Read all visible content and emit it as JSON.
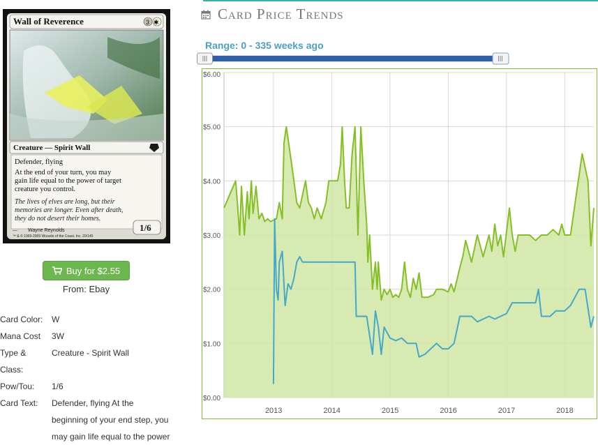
{
  "card": {
    "name": "Wall of Reverence",
    "mana_cost_symbols": [
      "3",
      "W"
    ],
    "type_line": "Creature — Spirit Wall",
    "rules": [
      "Defender, flying",
      "At the end of your turn, you may gain life equal to the power of target creature you control."
    ],
    "flavor": "The lives of elves are long, but their memories are longer. Even after death, they do not desert their homes.",
    "artist": "Wayne Reynolds",
    "copyright": "™ & © 1993-2009 Wizards of the Coast, Inc. 20/145",
    "pt": "1/6"
  },
  "buy": {
    "label": "Buy for $2.55",
    "icon": "cart-icon",
    "source": "From: Ebay"
  },
  "details": [
    {
      "label": "Card Color:",
      "value": "W"
    },
    {
      "label": "Mana Cost",
      "value": "3W"
    },
    {
      "label": "Type & Class:",
      "value": "Creature - Spirit Wall"
    },
    {
      "label": "Pow/Tou:",
      "value": "1/6"
    },
    {
      "label": "Card Text:",
      "value": "Defender, flying At the beginning of your end step, you may gain life equal to the power"
    }
  ],
  "trends": {
    "title": "Card Price Trends",
    "icon": "calendar-icon",
    "range_label": "Range: 0 - 335 weeks ago"
  },
  "colors": {
    "green_line": "#85bf25",
    "green_fill": "#cfe6a4",
    "blue_line": "#44a9c8",
    "button": "#6cb84f",
    "accent": "#3ab0b0"
  },
  "chart_data": {
    "type": "line",
    "y_ticks": [
      "$0.00",
      "$1.00",
      "$2.00",
      "$3.00",
      "$4.00",
      "$5.00",
      "$6.00"
    ],
    "x_ticks": [
      "2013",
      "2014",
      "2015",
      "2016",
      "2017",
      "2018"
    ],
    "ylim": [
      0,
      6
    ],
    "xlim": [
      2012.15,
      2018.5
    ],
    "grid": true,
    "series": [
      {
        "color": "#85bf25",
        "fill": true,
        "points": [
          [
            2012.15,
            3.5
          ],
          [
            2012.35,
            4.0
          ],
          [
            2012.38,
            3.6
          ],
          [
            2012.42,
            3.0
          ],
          [
            2012.45,
            3.9
          ],
          [
            2012.5,
            3.0
          ],
          [
            2012.55,
            3.8
          ],
          [
            2012.58,
            3.3
          ],
          [
            2012.62,
            4.0
          ],
          [
            2012.65,
            3.4
          ],
          [
            2012.7,
            3.9
          ],
          [
            2012.75,
            3.3
          ],
          [
            2012.8,
            3.4
          ],
          [
            2012.85,
            3.25
          ],
          [
            2012.9,
            3.3
          ],
          [
            2012.95,
            3.25
          ],
          [
            2013.05,
            3.3
          ],
          [
            2013.1,
            3.6
          ],
          [
            2013.15,
            3.3
          ],
          [
            2013.18,
            4.7
          ],
          [
            2013.22,
            5.0
          ],
          [
            2013.3,
            4.4
          ],
          [
            2013.35,
            4.0
          ],
          [
            2013.4,
            3.6
          ],
          [
            2013.45,
            3.5
          ],
          [
            2013.55,
            4.0
          ],
          [
            2013.6,
            3.6
          ],
          [
            2013.65,
            3.5
          ],
          [
            2013.7,
            3.3
          ],
          [
            2013.75,
            3.5
          ],
          [
            2013.82,
            3.3
          ],
          [
            2013.9,
            3.6
          ],
          [
            2013.95,
            4.0
          ],
          [
            2014.05,
            4.0
          ],
          [
            2014.1,
            4.0
          ],
          [
            2014.15,
            4.3
          ],
          [
            2014.18,
            5.0
          ],
          [
            2014.22,
            4.0
          ],
          [
            2014.25,
            3.5
          ],
          [
            2014.3,
            3.5
          ],
          [
            2014.35,
            4.5
          ],
          [
            2014.4,
            5.0
          ],
          [
            2014.45,
            3.0
          ],
          [
            2014.5,
            5.0
          ],
          [
            2014.55,
            4.0
          ],
          [
            2014.6,
            3.2
          ],
          [
            2014.62,
            2.5
          ],
          [
            2014.65,
            3.0
          ],
          [
            2014.7,
            2.0
          ],
          [
            2014.75,
            2.5
          ],
          [
            2014.78,
            2.0
          ],
          [
            2014.8,
            2.5
          ],
          [
            2014.85,
            1.8
          ],
          [
            2014.9,
            2.0
          ],
          [
            2014.95,
            1.9
          ],
          [
            2015.0,
            2.0
          ],
          [
            2015.05,
            1.85
          ],
          [
            2015.1,
            1.9
          ],
          [
            2015.15,
            1.85
          ],
          [
            2015.2,
            2.0
          ],
          [
            2015.25,
            2.5
          ],
          [
            2015.3,
            2.0
          ],
          [
            2015.35,
            1.85
          ],
          [
            2015.4,
            2.2
          ],
          [
            2015.45,
            2.0
          ],
          [
            2015.5,
            2.3
          ],
          [
            2015.55,
            1.85
          ],
          [
            2015.65,
            1.85
          ],
          [
            2015.75,
            1.9
          ],
          [
            2015.8,
            2.0
          ],
          [
            2015.9,
            2.0
          ],
          [
            2016.0,
            1.95
          ],
          [
            2016.05,
            2.1
          ],
          [
            2016.1,
            1.95
          ],
          [
            2016.2,
            2.4
          ],
          [
            2016.25,
            2.6
          ],
          [
            2016.3,
            2.9
          ],
          [
            2016.4,
            2.5
          ],
          [
            2016.5,
            3.0
          ],
          [
            2016.6,
            2.6
          ],
          [
            2016.7,
            3.0
          ],
          [
            2016.75,
            2.7
          ],
          [
            2016.8,
            3.2
          ],
          [
            2016.85,
            2.8
          ],
          [
            2016.9,
            3.0
          ],
          [
            2016.95,
            2.6
          ],
          [
            2017.05,
            3.5
          ],
          [
            2017.1,
            3.0
          ],
          [
            2017.15,
            2.7
          ],
          [
            2017.2,
            3.0
          ],
          [
            2017.4,
            3.0
          ],
          [
            2017.5,
            2.9
          ],
          [
            2017.6,
            3.0
          ],
          [
            2017.7,
            3.0
          ],
          [
            2017.8,
            3.1
          ],
          [
            2017.9,
            3.0
          ],
          [
            2017.95,
            3.2
          ],
          [
            2018.0,
            3.0
          ],
          [
            2018.1,
            3.0
          ],
          [
            2018.3,
            4.5
          ],
          [
            2018.4,
            4.0
          ],
          [
            2018.45,
            2.8
          ],
          [
            2018.5,
            3.5
          ]
        ]
      },
      {
        "color": "#44a9c8",
        "fill": false,
        "points": [
          [
            2013.0,
            0.25
          ],
          [
            2013.02,
            3.3
          ],
          [
            2013.05,
            2.0
          ],
          [
            2013.08,
            1.8
          ],
          [
            2013.1,
            2.5
          ],
          [
            2013.15,
            2.7
          ],
          [
            2013.2,
            1.7
          ],
          [
            2013.25,
            2.1
          ],
          [
            2013.3,
            2.0
          ],
          [
            2013.35,
            2.2
          ],
          [
            2013.4,
            2.5
          ],
          [
            2013.45,
            2.6
          ],
          [
            2013.5,
            2.5
          ],
          [
            2014.25,
            2.5
          ],
          [
            2014.4,
            2.5
          ],
          [
            2014.42,
            1.5
          ],
          [
            2014.6,
            1.5
          ],
          [
            2014.7,
            0.8
          ],
          [
            2014.75,
            1.6
          ],
          [
            2014.8,
            1.3
          ],
          [
            2014.85,
            0.8
          ],
          [
            2014.9,
            1.3
          ],
          [
            2015.0,
            1.1
          ],
          [
            2015.1,
            1.05
          ],
          [
            2015.2,
            1.1
          ],
          [
            2015.3,
            1.0
          ],
          [
            2015.45,
            1.0
          ],
          [
            2015.5,
            0.75
          ],
          [
            2015.6,
            0.8
          ],
          [
            2015.7,
            0.9
          ],
          [
            2015.8,
            1.0
          ],
          [
            2015.9,
            0.9
          ],
          [
            2016.0,
            0.9
          ],
          [
            2016.1,
            1.0
          ],
          [
            2016.2,
            1.5
          ],
          [
            2016.4,
            1.5
          ],
          [
            2016.5,
            1.4
          ],
          [
            2016.7,
            1.5
          ],
          [
            2016.8,
            1.45
          ],
          [
            2016.9,
            1.5
          ],
          [
            2017.0,
            1.55
          ],
          [
            2017.1,
            1.75
          ],
          [
            2017.3,
            1.75
          ],
          [
            2017.5,
            1.75
          ],
          [
            2017.55,
            2.0
          ],
          [
            2017.6,
            1.5
          ],
          [
            2017.75,
            1.5
          ],
          [
            2017.85,
            1.6
          ],
          [
            2018.0,
            1.6
          ],
          [
            2018.1,
            1.7
          ],
          [
            2018.25,
            2.0
          ],
          [
            2018.35,
            2.0
          ],
          [
            2018.45,
            1.3
          ],
          [
            2018.5,
            1.5
          ]
        ]
      }
    ]
  }
}
